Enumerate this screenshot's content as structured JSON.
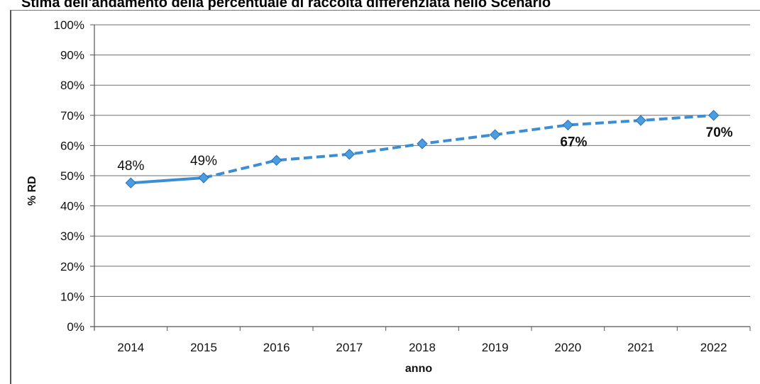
{
  "chart_data": {
    "type": "line",
    "title": "Stima dell'andamento della percentuale di raccolta differenziata nello Scenario",
    "xlabel": "anno",
    "ylabel": "% RD",
    "ylim": [
      0,
      100
    ],
    "y_ticks": [
      "0%",
      "10%",
      "20%",
      "30%",
      "40%",
      "50%",
      "60%",
      "70%",
      "80%",
      "90%",
      "100%"
    ],
    "categories": [
      "2014",
      "2015",
      "2016",
      "2017",
      "2018",
      "2019",
      "2020",
      "2021",
      "2022"
    ],
    "series": [
      {
        "values": [
          47.6,
          49.3,
          55.1,
          57.1,
          60.6,
          63.6,
          66.8,
          68.3,
          70.0
        ],
        "color": "#3b8ed4",
        "line_style": "solid for 2014–2015, dashed from 2015 onward",
        "marker": "diamond"
      }
    ],
    "data_labels": [
      {
        "category": "2014",
        "text": "48%",
        "bold": false
      },
      {
        "category": "2015",
        "text": "49%",
        "bold": false
      },
      {
        "category": "2020",
        "text": "67%",
        "bold": true
      },
      {
        "category": "2022",
        "text": "70%",
        "bold": true
      }
    ],
    "grid": true,
    "legend": "none"
  }
}
